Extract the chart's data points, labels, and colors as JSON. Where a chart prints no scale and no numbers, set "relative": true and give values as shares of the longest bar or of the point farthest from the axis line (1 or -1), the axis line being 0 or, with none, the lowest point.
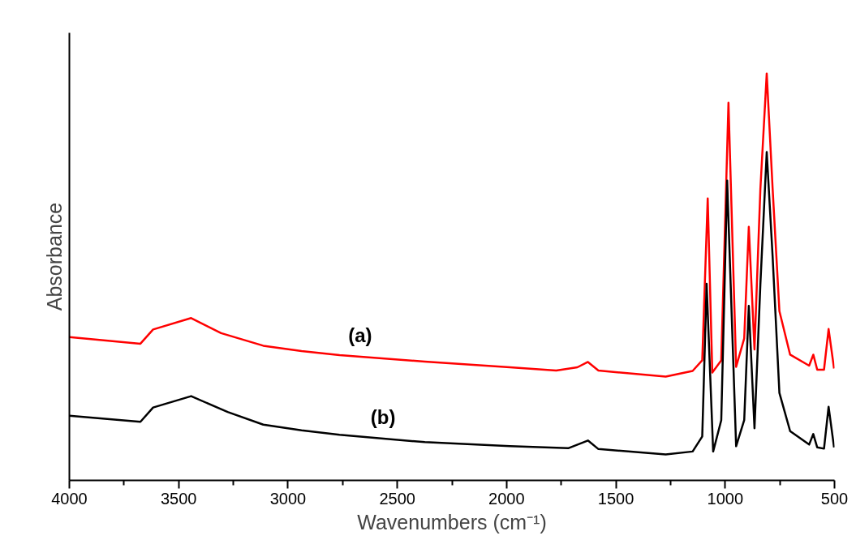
{
  "chart_data": {
    "type": "line",
    "relative": true,
    "xlabel": "Wavenumbers (cm⁻¹)",
    "ylabel": "Absorbance",
    "xlim": [
      4000,
      500
    ],
    "xticks": [
      4000,
      {
        "value": 3750,
        "label": null
      },
      3500,
      {
        "value": 3250,
        "label": null
      },
      3000,
      {
        "value": 2750,
        "label": null
      },
      2500,
      {
        "value": 2250,
        "label": null
      },
      2000,
      {
        "value": 1750,
        "label": null
      },
      1500,
      {
        "value": 1250,
        "label": null
      },
      1000,
      {
        "value": 750,
        "label": null
      },
      500
    ],
    "grid": false,
    "marker": "none",
    "line_style": "solid",
    "series": [
      {
        "name": "(a)",
        "color": "#ff0000",
        "x": [
          4000,
          3675,
          3617,
          3443,
          3306,
          3113,
          2938,
          2764,
          2374,
          1985,
          1773,
          1676,
          1628,
          1580,
          1502,
          1272,
          1149,
          1105,
          1080,
          1059,
          1018,
          985,
          950,
          913,
          892,
          866,
          839,
          810,
          783,
          752,
          703,
          616,
          597,
          579,
          548,
          527,
          502
        ],
        "values": [
          0.352,
          0.336,
          0.371,
          0.399,
          0.362,
          0.331,
          0.318,
          0.308,
          0.292,
          0.278,
          0.27,
          0.278,
          0.291,
          0.27,
          0.266,
          0.255,
          0.269,
          0.295,
          0.693,
          0.265,
          0.295,
          0.928,
          0.279,
          0.349,
          0.623,
          0.322,
          0.717,
          1,
          0.717,
          0.416,
          0.309,
          0.282,
          0.309,
          0.272,
          0.272,
          0.372,
          0.275
        ]
      },
      {
        "name": "(b)",
        "color": "#000000",
        "x": [
          4000,
          3675,
          3617,
          3443,
          3276,
          3113,
          2938,
          2764,
          2374,
          1985,
          1718,
          1628,
          1580,
          1272,
          1149,
          1105,
          1085,
          1055,
          1018,
          991,
          950,
          913,
          892,
          866,
          839,
          810,
          783,
          752,
          703,
          616,
          597,
          579,
          548,
          527,
          502
        ],
        "values": [
          0.159,
          0.144,
          0.179,
          0.207,
          0.168,
          0.137,
          0.123,
          0.112,
          0.094,
          0.084,
          0.079,
          0.098,
          0.077,
          0.064,
          0.071,
          0.108,
          0.483,
          0.071,
          0.148,
          0.737,
          0.084,
          0.148,
          0.429,
          0.128,
          0.483,
          0.807,
          0.55,
          0.215,
          0.121,
          0.088,
          0.114,
          0.081,
          0.078,
          0.181,
          0.081
        ]
      }
    ]
  }
}
